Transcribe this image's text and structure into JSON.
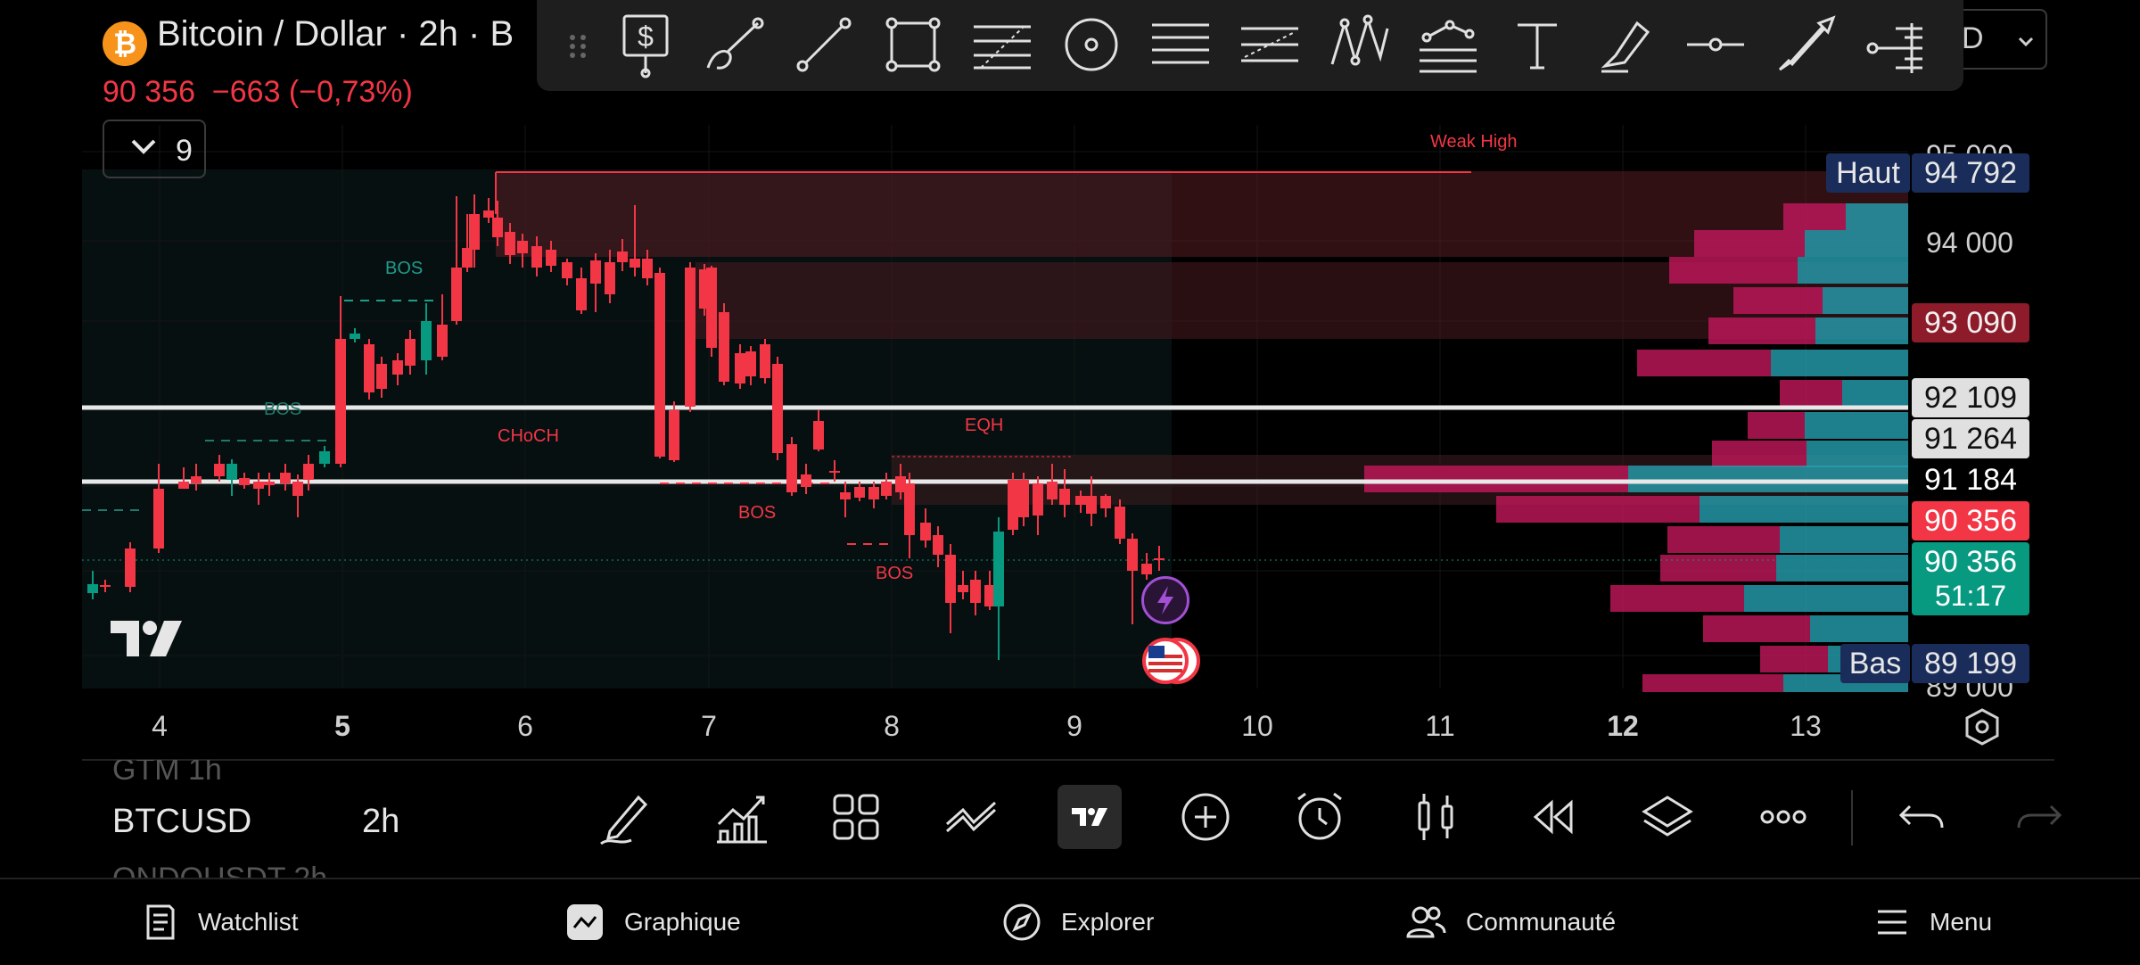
{
  "header": {
    "symbol_title": "Bitcoin / Dollar · 2h · B",
    "btc_badge": "₿",
    "last_price": "90 356",
    "change": "−663 (−0,73%)",
    "indicators_count": "9",
    "interval_partial": "D"
  },
  "chart": {
    "labels": {
      "weak_high": "Weak High",
      "bos_1": "BOS",
      "bos_2": "BOS",
      "bos_3": "BOS",
      "bos_4": "BOS",
      "choch": "CHoCH",
      "eqh": "EQH"
    },
    "x_axis": [
      "4",
      "5",
      "6",
      "7",
      "8",
      "9",
      "10",
      "11",
      "12",
      "13"
    ],
    "price_axis": {
      "top_partial": "95 000",
      "p94000": "94 000",
      "bottom_partial": "89 000"
    },
    "tags": {
      "haut_label": "Haut",
      "haut_value": "94 792",
      "p93090": "93 090",
      "p92109": "92 109",
      "p91264": "91 264",
      "p91184": "91 184",
      "p90356_red": "90 356",
      "p90356_green": "90 356",
      "countdown": "51:17",
      "bas_label": "Bas",
      "bas_value": "89 199"
    },
    "colors": {
      "up": "#089981",
      "down": "#f23645",
      "volume_profile_red": "#c2185b",
      "volume_profile_teal": "#26a0b0"
    }
  },
  "watchlist": {
    "row_above_partial": "GTM   1h",
    "symbol": "BTCUSD",
    "interval": "2h",
    "row_below_partial": "ONDOUSDT   2h"
  },
  "toolbar_icons": [
    "dollar-drawing-icon",
    "brush-icon",
    "trend-line-icon",
    "rectangle-icon",
    "fib-retracement-icon",
    "circle-icon",
    "parallel-channel-icon",
    "pitchfork-icon",
    "pattern-icon",
    "gann-icon",
    "text-icon",
    "highlighter-icon",
    "horizontal-ray-icon",
    "arrow-icon",
    "anchor-icon"
  ],
  "bottom_tools": [
    "pencil-icon",
    "indicators-icon",
    "layout-icon",
    "drawing-tools-icon",
    "tradingview-logo-icon",
    "add-icon",
    "alert-icon",
    "chart-type-icon",
    "replay-icon",
    "layers-icon",
    "more-icon",
    "undo-icon",
    "redo-icon"
  ],
  "nav": {
    "watchlist": "Watchlist",
    "chart": "Graphique",
    "explore": "Explorer",
    "community": "Communauté",
    "menu": "Menu"
  }
}
